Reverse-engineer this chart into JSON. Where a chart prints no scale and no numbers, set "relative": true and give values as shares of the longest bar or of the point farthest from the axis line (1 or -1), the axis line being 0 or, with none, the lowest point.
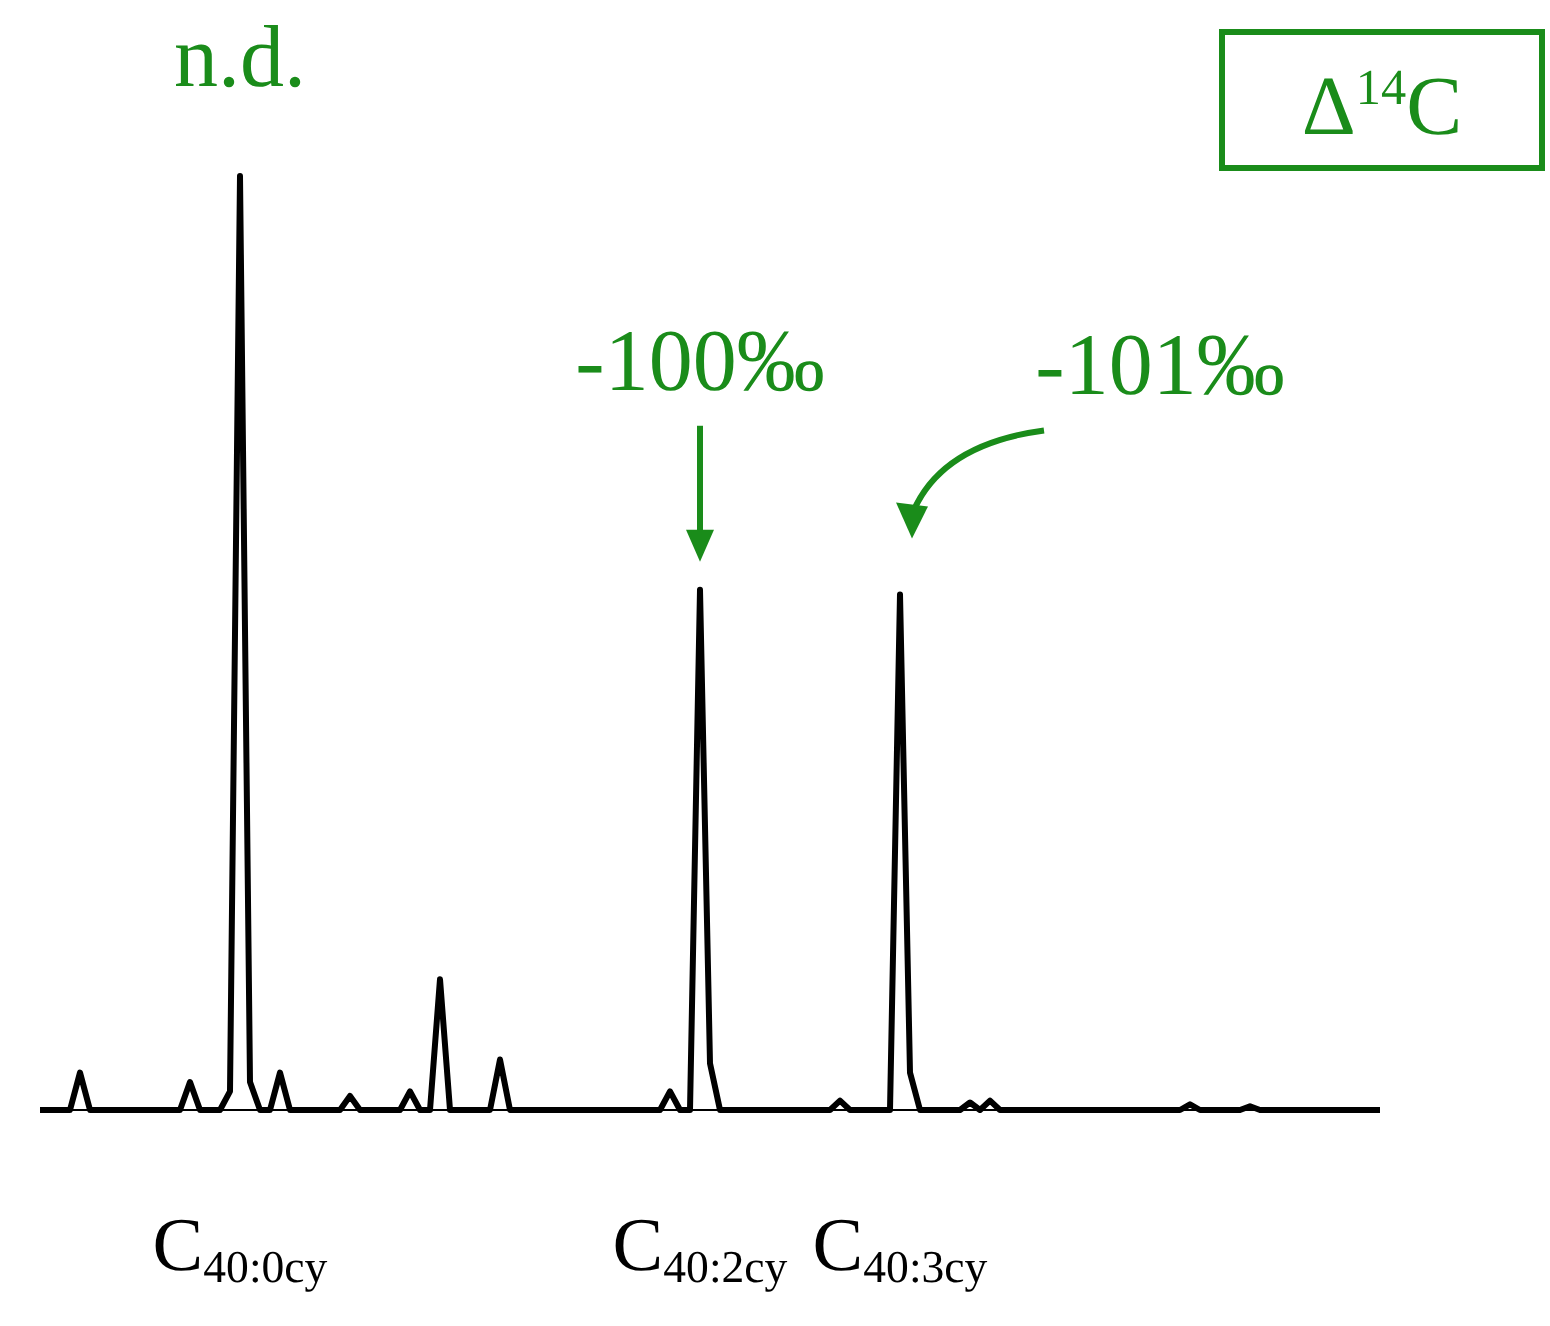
{
  "chart_data": {
    "type": "line",
    "relative": true,
    "title": "Δ$^{14}$C",
    "categories": [
      null,
      null,
      null,
      null,
      null,
      null,
      null,
      null,
      null,
      null,
      null,
      null,
      null,
      null,
      null,
      null,
      null,
      null,
      null,
      null,
      "C$_{40:0cy}$",
      null,
      null,
      null,
      null,
      null,
      null,
      null,
      null,
      null,
      null,
      null,
      null,
      null,
      null,
      null,
      null,
      null,
      null,
      null,
      null,
      null,
      null,
      null,
      null,
      null,
      null,
      null,
      null,
      null,
      null,
      null,
      null,
      null,
      null,
      null,
      null,
      null,
      null,
      null,
      null,
      null,
      null,
      null,
      null,
      null,
      "C$_{40:2cy}$",
      null,
      null,
      null,
      null,
      null,
      null,
      null,
      null,
      null,
      null,
      null,
      null,
      null,
      null,
      null,
      null,
      null,
      null,
      null,
      "C$_{40:3cy}$",
      null,
      null,
      null,
      null,
      null,
      null,
      null,
      null,
      null,
      null,
      null,
      null,
      null,
      null,
      null,
      null,
      null,
      null,
      null,
      null,
      null,
      null,
      null,
      null,
      null,
      null,
      null,
      null,
      null,
      null,
      null,
      null,
      null,
      null,
      null,
      null,
      null,
      null,
      null,
      null,
      null,
      null,
      null,
      null,
      null,
      null,
      null,
      null
    ],
    "series": [
      {
        "color": "#000000",
        "values": [
          0,
          0,
          0,
          0,
          0.04,
          0,
          0,
          0,
          0,
          0,
          0,
          0,
          0,
          0,
          0,
          0.03,
          0,
          0,
          0,
          0.02,
          1,
          0.03,
          0,
          0,
          0.04,
          0,
          0,
          0,
          0,
          0,
          0,
          0.015,
          0,
          0,
          0,
          0,
          0,
          0.02,
          0,
          0,
          0.14,
          0,
          0,
          0,
          0,
          0,
          0.054,
          0,
          0,
          0,
          0,
          0,
          0,
          0,
          0,
          0,
          0,
          0,
          0,
          0,
          0,
          0,
          0,
          0.02,
          0,
          0,
          0.557,
          0.05,
          0,
          0,
          0,
          0,
          0,
          0,
          0,
          0,
          0,
          0,
          0,
          0,
          0.01,
          0,
          0,
          0,
          0,
          0,
          0.552,
          0.04,
          0,
          0,
          0,
          0,
          0,
          0.008,
          0,
          0.01,
          0,
          0,
          0,
          0,
          0,
          0,
          0,
          0,
          0,
          0,
          0,
          0,
          0,
          0,
          0,
          0,
          0,
          0,
          0,
          0.006,
          0,
          0,
          0,
          0,
          0,
          0.004,
          0,
          0,
          0,
          0,
          0,
          0,
          0,
          0,
          0,
          0,
          0,
          0,
          0
        ]
      }
    ],
    "annotations": [
      {
        "text": "n.d.",
        "x": "C$_{40:0cy}$",
        "y": 1
      },
      {
        "text": "-100‰",
        "x": "C$_{40:2cy}$",
        "y": 0.557
      },
      {
        "text": "-101‰",
        "x": "C$_{40:3cy}$",
        "y": 0.552
      }
    ]
  }
}
